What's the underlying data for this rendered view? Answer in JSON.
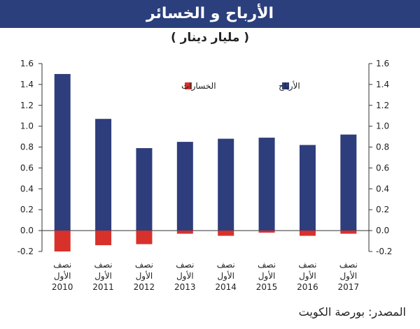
{
  "colors": {
    "header_bg": "#2b3f7d",
    "profits": "#2e3d7c",
    "losses": "#d8312b"
  },
  "chart_data": {
    "type": "bar",
    "title": "الأرباح و الخسائر",
    "subtitle": "( مليار دينار )",
    "source": "المصدر: بورصة الكويت",
    "categories": [
      [
        "نصف",
        "الأول",
        "2010"
      ],
      [
        "نصف",
        "الأول",
        "2011"
      ],
      [
        "نصف",
        "الأول",
        "2012"
      ],
      [
        "نصف",
        "الأول",
        "2013"
      ],
      [
        "نصف",
        "الأول",
        "2014"
      ],
      [
        "نصف",
        "الأول",
        "2015"
      ],
      [
        "نصف",
        "الأول",
        "2016"
      ],
      [
        "نصف",
        "الأول",
        "2017"
      ]
    ],
    "series": [
      {
        "name": "الأرباح",
        "color": "#2e3d7c",
        "values": [
          1.5,
          1.07,
          0.79,
          0.85,
          0.88,
          0.89,
          0.82,
          0.92
        ]
      },
      {
        "name": "الخسارات",
        "color": "#d8312b",
        "values": [
          -0.2,
          -0.14,
          -0.13,
          -0.03,
          -0.05,
          -0.02,
          -0.05,
          -0.03
        ]
      }
    ],
    "ylim": [
      -0.2,
      1.6
    ],
    "yticks": [
      "-0.2",
      "0.0",
      "0.2",
      "0.4",
      "0.6",
      "0.8",
      "1.0",
      "1.2",
      "1.4",
      "1.6"
    ],
    "legend_position": "top-right",
    "grid": false,
    "secondary_y_axis": true
  }
}
